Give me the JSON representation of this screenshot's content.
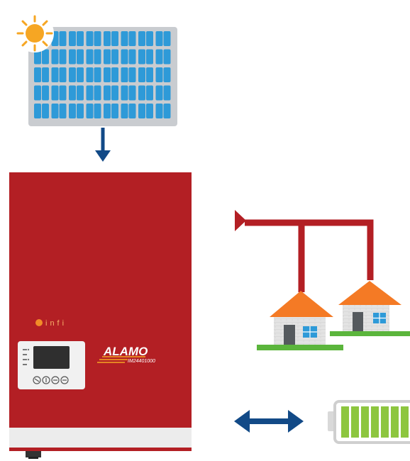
{
  "brand": {
    "logo_text": "infi",
    "product_name": "ALAMO",
    "model_number": "IM24401000"
  },
  "colors": {
    "inverter_red": "#b31f24",
    "panel_frame": "#c9ccd0",
    "panel_cell": "#2e9ad8",
    "sun": "#f6a623",
    "arrow_blue": "#124a87",
    "wire_red": "#b31f24",
    "roof": "#f47a25",
    "wall": "#dcdcdc",
    "grass": "#5bb53c",
    "battery_green": "#8dc63f",
    "battery_frame": "#cfcfcf"
  },
  "icons": [
    "sun-icon",
    "solar-panel-icon",
    "down-arrow-icon",
    "inverter-icon",
    "power-line-icon",
    "house-icon",
    "double-arrow-icon",
    "battery-icon"
  ]
}
